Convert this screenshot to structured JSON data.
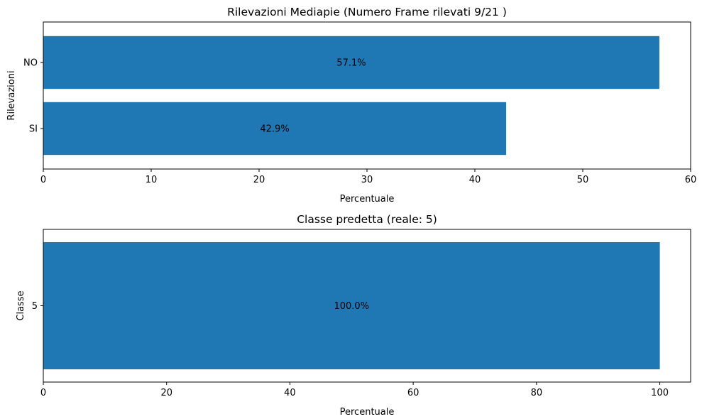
{
  "chart_data": [
    {
      "type": "bar",
      "orientation": "horizontal",
      "title": "Rilevazioni Mediapie (Numero Frame rilevati 9/21 )",
      "xlabel": "Percentuale",
      "ylabel": "Rilevazioni",
      "categories": [
        "NO",
        "SI"
      ],
      "values": [
        57.1,
        42.9
      ],
      "data_labels": [
        "57.1%",
        "42.9%"
      ],
      "xlim": [
        0,
        60
      ],
      "xticks": [
        0,
        10,
        20,
        30,
        40,
        50,
        60
      ],
      "grid": false,
      "bar_color": "#1f77b4"
    },
    {
      "type": "bar",
      "orientation": "horizontal",
      "title": "Classe predetta (reale: 5)",
      "xlabel": "Percentuale",
      "ylabel": "Classe",
      "categories": [
        "5"
      ],
      "values": [
        100.0
      ],
      "data_labels": [
        "100.0%"
      ],
      "xlim": [
        0,
        105
      ],
      "xticks": [
        0,
        20,
        40,
        60,
        80,
        100
      ],
      "grid": false,
      "bar_color": "#1f77b4"
    }
  ]
}
